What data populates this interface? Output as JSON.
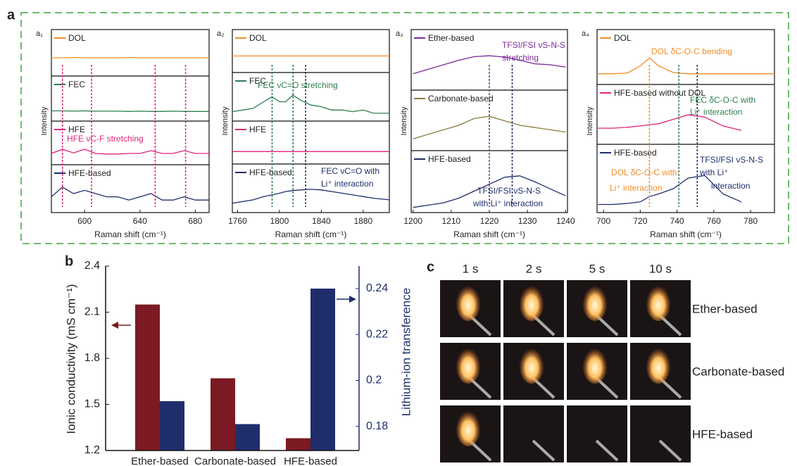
{
  "panel_labels": [
    "a",
    "b",
    "c"
  ],
  "chart_data": [
    {
      "type": "line",
      "title": "a₁",
      "xlabel": "Raman shift (cm⁻¹)",
      "ylabel": "Intensity",
      "xlim": [
        576,
        690
      ],
      "xticks": [
        600,
        640,
        680
      ],
      "ylim": [
        0,
        10
      ],
      "x": [
        576,
        584,
        592,
        600,
        608,
        616,
        624,
        632,
        640,
        648,
        656,
        664,
        672,
        680,
        690
      ],
      "series": [
        {
          "name": "DOL",
          "color": "#f28c28",
          "values": [
            5,
            5,
            5.1,
            5,
            5,
            5,
            5,
            5.1,
            5,
            5,
            5,
            5,
            5,
            5,
            5
          ]
        },
        {
          "name": "FEC",
          "color": "#2e7d4f",
          "values": [
            2.5,
            2.5,
            2.4,
            2.5,
            2.4,
            2.4,
            2.4,
            2.3,
            2.4,
            2.3,
            2.3,
            2.4,
            2.3,
            2.3,
            2.3
          ]
        },
        {
          "name": "HFE",
          "color": "#e0247a",
          "values": [
            3,
            4.5,
            3.2,
            4.5,
            3,
            2.8,
            2.8,
            3,
            3,
            4,
            3,
            3,
            4,
            3,
            3
          ]
        },
        {
          "name": "HFE-based",
          "color": "#1f2d6b",
          "values": [
            4,
            7,
            5,
            6,
            5,
            4,
            4,
            3,
            4,
            5,
            3,
            3,
            4,
            3,
            3
          ]
        }
      ],
      "vlines": [
        {
          "x": 584,
          "color": "#e0247a"
        },
        {
          "x": 605,
          "color": "#e0247a"
        },
        {
          "x": 651,
          "color": "#e0247a"
        },
        {
          "x": 673,
          "color": "#e0247a"
        }
      ],
      "annotations": [
        {
          "text": "HFE   νC-F stretching",
          "color": "#e0247a"
        }
      ]
    },
    {
      "type": "line",
      "title": "a₂",
      "xlabel": "Raman shift (cm⁻¹)",
      "ylabel": "Intensity",
      "xlim": [
        1755,
        1905
      ],
      "xticks": [
        1760,
        1800,
        1840,
        1880
      ],
      "ylim": [
        0,
        10
      ],
      "x": [
        1755,
        1765,
        1775,
        1785,
        1793,
        1800,
        1806,
        1813,
        1820,
        1830,
        1840,
        1850,
        1860,
        1870,
        1880,
        1890,
        1905
      ],
      "series": [
        {
          "name": "DOL",
          "color": "#f28c28",
          "values": [
            5,
            5,
            5,
            5,
            5,
            5,
            5,
            5,
            5,
            5,
            5,
            5,
            5,
            5,
            5,
            5,
            5
          ]
        },
        {
          "name": "FEC",
          "color": "#2e7d4f",
          "values": [
            2,
            2.5,
            3,
            5,
            6.5,
            5,
            5,
            7,
            5.5,
            4,
            3.5,
            2.5,
            2.5,
            2,
            2.5,
            1.5,
            1.5
          ]
        },
        {
          "name": "HFE",
          "color": "#e0247a",
          "values": [
            3.5,
            3.5,
            3.5,
            3.5,
            3.5,
            3.5,
            3.5,
            3.5,
            3.5,
            3.5,
            3.5,
            3.5,
            3.5,
            3.5,
            3.5,
            3.5,
            3.5
          ]
        },
        {
          "name": "HFE-based",
          "color": "#1f2d6b",
          "values": [
            2,
            2.5,
            3,
            4,
            4.5,
            5,
            5.5,
            5.8,
            6,
            6.2,
            6,
            5.5,
            5,
            4.5,
            4,
            3.5,
            3
          ]
        }
      ],
      "vlines": [
        {
          "x": 1793,
          "color": "#2e7d4f"
        },
        {
          "x": 1813,
          "color": "#2e7d4f"
        },
        {
          "x": 1825,
          "color": "#1f2d6b"
        }
      ],
      "annotations": [
        {
          "text": "FEC  νC=O stretching",
          "color": "#2e7d4f"
        },
        {
          "text": "FEC νC=O with",
          "color": "#1f2d6b"
        },
        {
          "text": "Li⁺ interaction",
          "color": "#1f2d6b"
        }
      ]
    },
    {
      "type": "line",
      "title": "a₃",
      "xlabel": "Raman shift (cm⁻¹)",
      "ylabel": "Intensity",
      "xlim": [
        1199.5,
        1240.5
      ],
      "xticks": [
        1200,
        1210,
        1220,
        1230,
        1240
      ],
      "ylim": [
        0,
        10
      ],
      "x": [
        1200,
        1204,
        1208,
        1212,
        1216,
        1220,
        1224,
        1228,
        1232,
        1236,
        1240
      ],
      "series": [
        {
          "name": "Ether-based",
          "color": "#7b2a9a",
          "values": [
            3,
            4,
            5,
            6,
            6.8,
            7,
            6.7,
            6,
            5.2,
            5,
            4.5
          ]
        },
        {
          "name": "Carbonate-based",
          "color": "#8a7a3a",
          "values": [
            2,
            3,
            4,
            5,
            6.5,
            7,
            6,
            5,
            4.5,
            4,
            3.5
          ]
        },
        {
          "name": "HFE-based",
          "color": "#1f2d6b",
          "values": [
            0.5,
            1,
            1.5,
            2.5,
            4,
            5.5,
            7,
            7.3,
            6,
            4.5,
            3
          ]
        }
      ],
      "vlines": [
        {
          "x": 1220,
          "color": "#7b2a9a"
        },
        {
          "x": 1226,
          "color": "#1f2d6b"
        }
      ],
      "annotations": [
        {
          "text": "TFSI/FSI νS-N-S",
          "color": "#7b2a9a"
        },
        {
          "text": "stretching",
          "color": "#7b2a9a"
        },
        {
          "text": "TFSI/FSI νS-N-S",
          "color": "#1f2d6b"
        },
        {
          "text": "with Li⁺ interaction",
          "color": "#1f2d6b"
        }
      ]
    },
    {
      "type": "line",
      "title": "a₄",
      "xlabel": "Raman shift (cm⁻¹)",
      "ylabel": "Intensity",
      "xlim": [
        696.5,
        793
      ],
      "xticks": [
        700,
        720,
        740,
        760,
        780
      ],
      "ylim": [
        0,
        10
      ],
      "x": [
        697,
        705,
        713,
        720,
        725,
        730,
        738,
        746,
        755,
        765,
        775,
        785,
        793
      ],
      "series": [
        {
          "name": "DOL",
          "color": "#f28c28",
          "values": [
            2,
            2,
            2.2,
            4,
            6,
            4,
            2.3,
            2,
            2,
            2,
            2,
            2,
            2
          ]
        },
        {
          "name": "HFE-based without DOL",
          "color": "#e0247a",
          "values": [
            3,
            3,
            3.2,
            3.5,
            3.8,
            4,
            5,
            6,
            5.5,
            3.5,
            2.5,
            null,
            null
          ]
        },
        {
          "name": "HFE-based",
          "color": "#1f2d6b",
          "values": [
            1,
            1,
            1.2,
            1.5,
            2.5,
            3,
            4,
            6,
            6.5,
            3,
            1.5,
            null,
            null
          ]
        }
      ],
      "vlines": [
        {
          "x": 725,
          "color": "#f28c28"
        },
        {
          "x": 741,
          "color": "#2e7d4f"
        },
        {
          "x": 751,
          "color": "#1f2d6b"
        }
      ],
      "annotations": [
        {
          "text": "DOL  δC-O-C bending",
          "color": "#f28c28"
        },
        {
          "text": "FEC δC-O-C with",
          "color": "#2e7d4f"
        },
        {
          "text": "Li⁺ interaction",
          "color": "#2e7d4f"
        },
        {
          "text": "TFSI/FSI νS-N-S",
          "color": "#1f2d6b"
        },
        {
          "text": "with Li⁺",
          "color": "#1f2d6b"
        },
        {
          "text": "interaction",
          "color": "#1f2d6b"
        },
        {
          "text": "DOL δC-O-C with",
          "color": "#f28c28"
        },
        {
          "text": "Li⁺ interaction",
          "color": "#f28c28"
        }
      ]
    },
    {
      "type": "bar",
      "ylabel": "Ionic conductivity (mS cm⁻¹)",
      "y2label": "Lithium-ion transference",
      "categories": [
        "Ether-based",
        "Carbonate-based",
        "HFE-based"
      ],
      "ylim": [
        1.2,
        2.4
      ],
      "yticks": [
        1.2,
        1.5,
        1.8,
        2.1,
        2.4
      ],
      "y2lim": [
        0.1695,
        0.2498
      ],
      "y2ticks": [
        0.18,
        0.2,
        0.22,
        0.24
      ],
      "series": [
        {
          "color": "#7b1a22",
          "values": [
            2.15,
            1.67,
            1.28
          ]
        },
        {
          "color": "#1f2d6b",
          "axis": "y2",
          "values": [
            0.191,
            0.181,
            0.24
          ]
        }
      ]
    }
  ],
  "flame_test": {
    "times": [
      "1 s",
      "2 s",
      "5 s",
      "10 s"
    ],
    "rows": [
      "Ether-based",
      "Carbonate-based",
      "HFE-based"
    ]
  }
}
